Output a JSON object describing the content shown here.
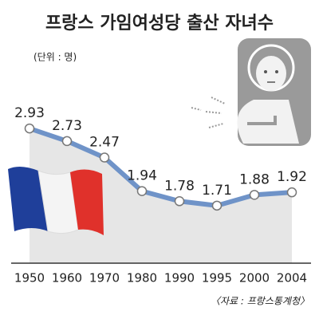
{
  "chart_data": {
    "type": "line",
    "title": "프랑스 가임여성당 출산 자녀수",
    "subtitle": "(단위 : 명)",
    "source": "〈자료 : 프랑스통계청〉",
    "categories": [
      "1950",
      "1960",
      "1970",
      "1980",
      "1990",
      "1995",
      "2000",
      "2004"
    ],
    "values": [
      2.93,
      2.73,
      2.47,
      1.94,
      1.78,
      1.71,
      1.88,
      1.92
    ],
    "color": "#6f93c8",
    "ylim": [
      0.8,
      3.7
    ]
  }
}
